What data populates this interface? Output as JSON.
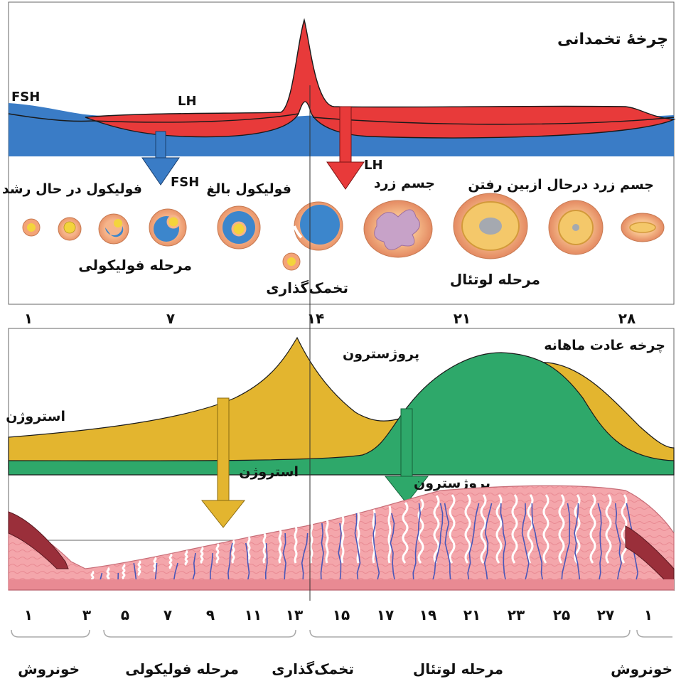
{
  "ovarian_panel": {
    "title": "چرخۀ تخمدانی",
    "fsh_label": "FSH",
    "lh_label": "LH",
    "fsh_arrow_label": "FSH",
    "lh_arrow_label": "LH",
    "growing_follicle": "فولیکول در حال رشد",
    "mature_follicle": "فولیکول بالغ",
    "corpus_luteum": "جسم زرد",
    "degenerating_corpus_luteum": "جسم زرد درحال ازبین رفتن",
    "follicular_phase": "مرحله فولیکولی",
    "ovulation": "تخمک‌گذاری",
    "luteal_phase": "مرحله لوتئال"
  },
  "day_scale_top": [
    "۱",
    "۷",
    "۱۴",
    "۲۱",
    "۲۸"
  ],
  "menstrual_panel": {
    "title": "چرخه عادت ماهانه",
    "progesterone_label": "پروژسترون",
    "estrogen_label": "استروژن",
    "estrogen_arrow_label": "استروژن",
    "progesterone_arrow_label": "پروژسترون"
  },
  "day_scale_bottom": [
    "۱",
    "۳",
    "۵",
    "۷",
    "۹",
    "۱۱",
    "۱۳",
    "۱۵",
    "۱۷",
    "۱۹",
    "۲۱",
    "۲۳",
    "۲۵",
    "۲۷",
    "۱"
  ],
  "phase_labels": {
    "menses_start": "خونروش",
    "follicular": "مرحله فولیکولی",
    "ovulation": "تخمک‌گذاری",
    "luteal": "مرحله لوتئال",
    "menses_end": "خونروش"
  },
  "colors": {
    "fsh_band": "#3a7cc6",
    "lh_band": "#e83a3a",
    "estrogen": "#e3b52f",
    "progesterone": "#2ea86a",
    "endometrium": "#f2a2a8",
    "vessels": "#4a57b8",
    "follicle_outer": "#f0a878",
    "follicle_blue": "#3c86cc"
  }
}
